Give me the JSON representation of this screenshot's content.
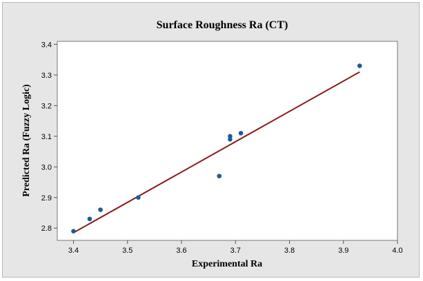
{
  "chart_data": {
    "type": "scatter",
    "title": "Surface Roughness Ra (CT)",
    "xlabel": "Experimental  Ra",
    "ylabel": "Predicted Ra (Fuzzy Logic)",
    "xlim": [
      3.37,
      4.0
    ],
    "ylim": [
      2.76,
      3.41
    ],
    "xticks": [
      "3.4",
      "3.5",
      "3.6",
      "3.7",
      "3.8",
      "3.9",
      "4.0"
    ],
    "xtick_values": [
      3.4,
      3.5,
      3.6,
      3.7,
      3.8,
      3.9,
      4.0
    ],
    "yticks": [
      "2.8",
      "2.9",
      "3.0",
      "3.1",
      "3.2",
      "3.3",
      "3.4"
    ],
    "ytick_values": [
      2.8,
      2.9,
      3.0,
      3.1,
      3.2,
      3.3,
      3.4
    ],
    "grid": false,
    "points": [
      {
        "x": 3.4,
        "y": 2.79
      },
      {
        "x": 3.43,
        "y": 2.83
      },
      {
        "x": 3.45,
        "y": 2.86
      },
      {
        "x": 3.52,
        "y": 2.9
      },
      {
        "x": 3.67,
        "y": 2.97
      },
      {
        "x": 3.69,
        "y": 3.09
      },
      {
        "x": 3.69,
        "y": 3.1
      },
      {
        "x": 3.71,
        "y": 3.11
      },
      {
        "x": 3.93,
        "y": 3.33
      }
    ],
    "fit_line": {
      "x1": 3.4,
      "y1": 2.785,
      "x2": 3.93,
      "y2": 3.31
    },
    "point_color": "#1f5a96",
    "line_color": "#8b1a1a"
  }
}
